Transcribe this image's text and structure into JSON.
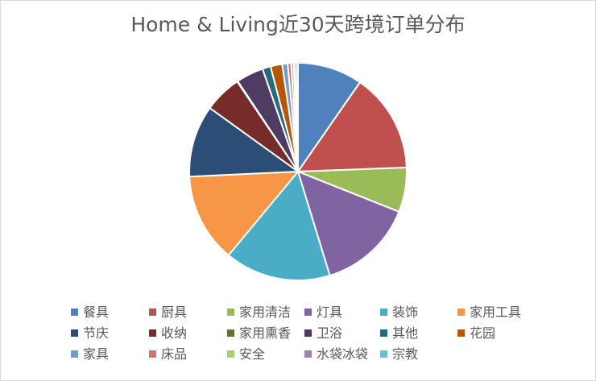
{
  "chart_data": {
    "type": "pie",
    "title": "Home & Living近30天跨境订单分布",
    "legend_position": "bottom",
    "categories": [
      "餐具",
      "厨具",
      "家用清洁",
      "灯具",
      "装饰",
      "家用工具",
      "节庆",
      "收纳",
      "家用熏香",
      "卫浴",
      "其他",
      "花园",
      "家具",
      "床品",
      "安全",
      "水袋冰袋",
      "宗教"
    ],
    "values": [
      9.5,
      14.5,
      6.5,
      14.0,
      15.5,
      13.0,
      10.5,
      5.5,
      0.1,
      4.0,
      1.2,
      1.7,
      0.8,
      0.5,
      0.4,
      0.3,
      0.3
    ],
    "colors": [
      "#4f81bd",
      "#c0504d",
      "#9bbb59",
      "#8064a2",
      "#4bacc6",
      "#f79646",
      "#2c4d75",
      "#772c2a",
      "#5f7530",
      "#4d3b62",
      "#276a7c",
      "#b65708",
      "#729aca",
      "#cd7371",
      "#afc97a",
      "#9983b5",
      "#6fbdd1"
    ]
  }
}
